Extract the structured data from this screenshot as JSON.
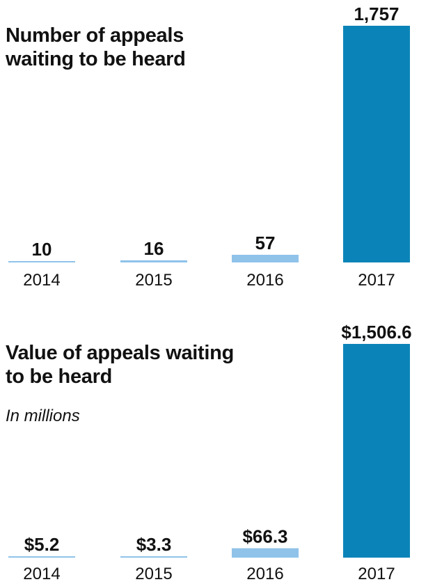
{
  "chart_data": [
    {
      "type": "bar",
      "title": "Number of appeals waiting to be heard",
      "subtitle": "",
      "categories": [
        "2014",
        "2015",
        "2016",
        "2017"
      ],
      "values": [
        10,
        16,
        57,
        1757
      ],
      "labels": [
        "10",
        "16",
        "57",
        "1,757"
      ],
      "colors": [
        "#8fc3ea",
        "#8fc3ea",
        "#8fc3ea",
        "#0a84b8"
      ],
      "ylim": [
        0,
        1757
      ],
      "grid": false
    },
    {
      "type": "bar",
      "title": "Value of appeals waiting to be heard",
      "subtitle": "In millions",
      "categories": [
        "2014",
        "2015",
        "2016",
        "2017"
      ],
      "values": [
        5.2,
        3.3,
        66.3,
        1506.6
      ],
      "labels": [
        "$5.2",
        "$3.3",
        "$66.3",
        "$1,506.6"
      ],
      "colors": [
        "#8fc3ea",
        "#8fc3ea",
        "#8fc3ea",
        "#0a84b8"
      ],
      "ylim": [
        0,
        1506.6
      ],
      "grid": false
    }
  ]
}
